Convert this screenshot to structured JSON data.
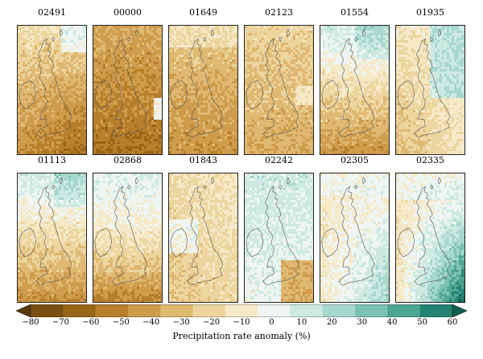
{
  "panels": [
    {
      "title": "02491",
      "pattern": "dry_south"
    },
    {
      "title": "00000",
      "pattern": "dry_all"
    },
    {
      "title": "01649",
      "pattern": "dry_moderate"
    },
    {
      "title": "02123",
      "pattern": "dry_mild"
    },
    {
      "title": "01554",
      "pattern": "wet_north_dry_south"
    },
    {
      "title": "01935",
      "pattern": "wet_east"
    },
    {
      "title": "01113",
      "pattern": "wet_north_dry_south"
    },
    {
      "title": "02868",
      "pattern": "neutral_dry_south"
    },
    {
      "title": "01843",
      "pattern": "neutral"
    },
    {
      "title": "02242",
      "pattern": "wet_north_dry_se"
    },
    {
      "title": "02305",
      "pattern": "wet_se_mild"
    },
    {
      "title": "02335",
      "pattern": "wet_se_strong"
    }
  ],
  "colorbar": {
    "label": "Precipitation rate anomaly (%)",
    "ticks": [
      "−80",
      "−70",
      "−60",
      "−50",
      "−40",
      "−30",
      "−20",
      "−10",
      "0",
      "10",
      "20",
      "30",
      "40",
      "50",
      "60"
    ],
    "colors": [
      "#5a3808",
      "#7a4f12",
      "#9a6518",
      "#b77f2b",
      "#cf9c4c",
      "#dfb872",
      "#ecd59e",
      "#f5e9c8",
      "#eef5f3",
      "#cde9e2",
      "#a7d8cc",
      "#7cc2b2",
      "#4ea592",
      "#238471",
      "#0c5e4e"
    ]
  }
}
